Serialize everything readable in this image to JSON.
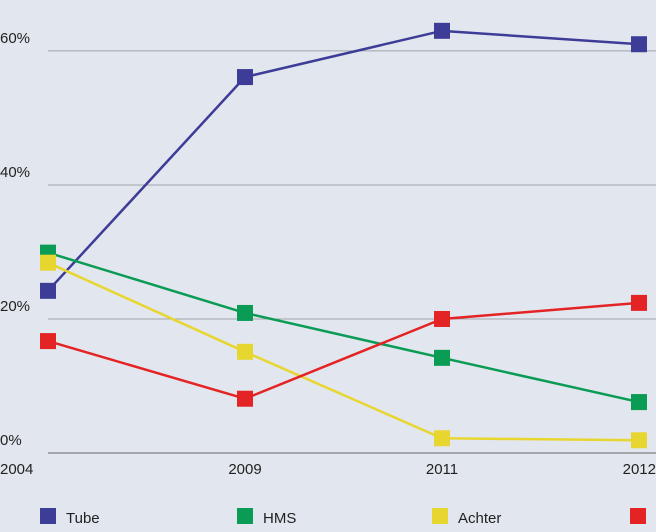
{
  "chart_data": {
    "type": "line",
    "categories": [
      "2004",
      "2009",
      "2011",
      "2012"
    ],
    "series": [
      {
        "name": "Tube",
        "color": "#3d3d98",
        "values": [
          24.2,
          56.1,
          63,
          61
        ]
      },
      {
        "name": "HMS",
        "color": "#0a9b55",
        "values": [
          29.9,
          20.9,
          14.2,
          7.6
        ]
      },
      {
        "name": "Achter",
        "color": "#e8d630",
        "values": [
          28.4,
          15.1,
          2.2,
          1.9
        ]
      },
      {
        "name": null,
        "color": "#e42424",
        "values": [
          16.7,
          8.1,
          20,
          22.4
        ]
      }
    ],
    "ylim": [
      0,
      67.6
    ],
    "yticks": [
      {
        "value": 0,
        "label": "0%"
      },
      {
        "value": 20,
        "label": "20%"
      },
      {
        "value": 40,
        "label": "40%"
      },
      {
        "value": 60,
        "label": "60%"
      }
    ],
    "grid": true
  }
}
